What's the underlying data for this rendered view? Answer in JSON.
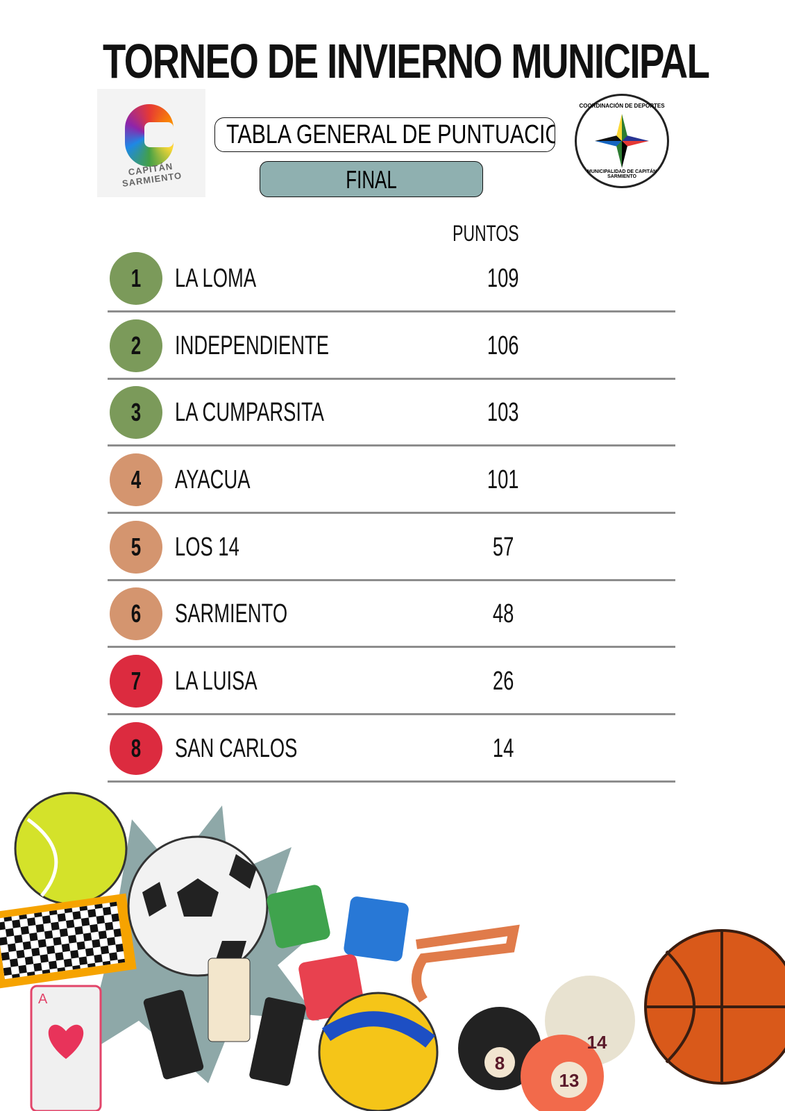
{
  "title": "TORNEO DE INVIERNO MUNICIPAL",
  "subtitle": "TABLA  GENERAL DE PUNTUACION",
  "stage": "FINAL",
  "logos": {
    "left": "CAPITÁN SARMIENTO",
    "right_top": "COORDINACIÓN DE DEPORTES",
    "right_bottom": "MUNICIPALIDAD DE CAPITÁN SARMIENTO"
  },
  "column_header": "PUNTOS",
  "colors": {
    "green": "#7b9a5a",
    "tan": "#d4956f",
    "red": "#dc2b3f",
    "final_box": "#8fb0b0"
  },
  "standings": [
    {
      "pos": "1",
      "team": "LA LOMA",
      "points": "109",
      "color": "#7b9a5a"
    },
    {
      "pos": "2",
      "team": "INDEPENDIENTE",
      "points": "106",
      "color": "#7b9a5a"
    },
    {
      "pos": "3",
      "team": "LA CUMPARSITA",
      "points": "103",
      "color": "#7b9a5a"
    },
    {
      "pos": "4",
      "team": "AYACUA",
      "points": "101",
      "color": "#d4956f"
    },
    {
      "pos": "5",
      "team": "LOS 14",
      "points": "57",
      "color": "#d4956f"
    },
    {
      "pos": "6",
      "team": "SARMIENTO",
      "points": "48",
      "color": "#d4956f"
    },
    {
      "pos": "7",
      "team": "LA LUISA",
      "points": "26",
      "color": "#dc2b3f"
    },
    {
      "pos": "8",
      "team": "SAN CARLOS",
      "points": "14",
      "color": "#dc2b3f"
    }
  ],
  "illustration": {
    "ball_numbers": [
      "8",
      "13",
      "14"
    ],
    "card": "A"
  }
}
